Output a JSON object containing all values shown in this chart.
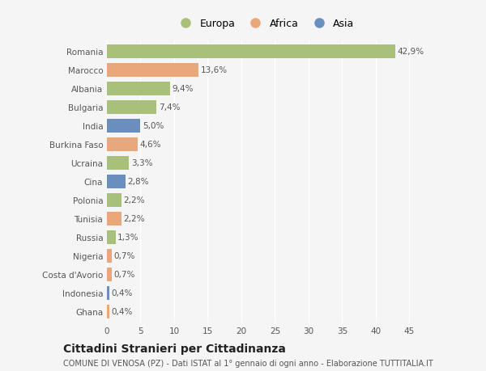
{
  "categories": [
    "Romania",
    "Marocco",
    "Albania",
    "Bulgaria",
    "India",
    "Burkina Faso",
    "Ucraina",
    "Cina",
    "Polonia",
    "Tunisia",
    "Russia",
    "Nigeria",
    "Costa d'Avorio",
    "Indonesia",
    "Ghana"
  ],
  "values": [
    42.9,
    13.6,
    9.4,
    7.4,
    5.0,
    4.6,
    3.3,
    2.8,
    2.2,
    2.2,
    1.3,
    0.7,
    0.7,
    0.4,
    0.4
  ],
  "labels": [
    "42,9%",
    "13,6%",
    "9,4%",
    "7,4%",
    "5,0%",
    "4,6%",
    "3,3%",
    "2,8%",
    "2,2%",
    "2,2%",
    "1,3%",
    "0,7%",
    "0,7%",
    "0,4%",
    "0,4%"
  ],
  "continent": [
    "Europa",
    "Africa",
    "Europa",
    "Europa",
    "Asia",
    "Africa",
    "Europa",
    "Asia",
    "Europa",
    "Africa",
    "Europa",
    "Africa",
    "Africa",
    "Asia",
    "Africa"
  ],
  "colors": {
    "Europa": "#a8c07a",
    "Africa": "#e8a87c",
    "Asia": "#6a8fbf"
  },
  "xlim": [
    0,
    47
  ],
  "xticks": [
    0,
    5,
    10,
    15,
    20,
    25,
    30,
    35,
    40,
    45
  ],
  "title": "Cittadini Stranieri per Cittadinanza",
  "subtitle": "COMUNE DI VENOSA (PZ) - Dati ISTAT al 1° gennaio di ogni anno - Elaborazione TUTTITALIA.IT",
  "background_color": "#f5f5f5",
  "grid_color": "#ffffff",
  "bar_height": 0.72,
  "label_fontsize": 7.5,
  "tick_fontsize": 7.5,
  "title_fontsize": 10,
  "subtitle_fontsize": 7
}
